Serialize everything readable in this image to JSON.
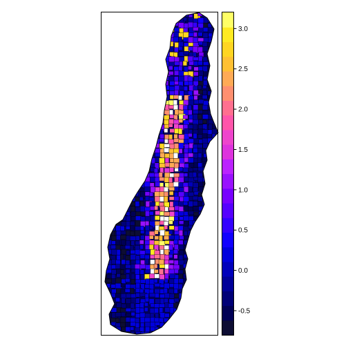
{
  "map": {
    "type": "choropleth",
    "legend_placement": "right",
    "colors": {
      "frame": "#000000",
      "region_border": "#000000",
      "missing": "#ffffff"
    }
  },
  "legend": {
    "min": -0.8,
    "max": 3.2,
    "bins": [
      "#0d0d33",
      "#000055",
      "#000077",
      "#000099",
      "#0000bb",
      "#0000dd",
      "#1100ff",
      "#3300ff",
      "#5500ff",
      "#7700ff",
      "#9911ff",
      "#bb22ff",
      "#dd33dd",
      "#ee44cc",
      "#ff55aa",
      "#ff6f8f",
      "#ff8f6f",
      "#ffaa55",
      "#ffc033",
      "#ffd522",
      "#ffea22",
      "#ffff66"
    ],
    "ticks": [
      {
        "value": -0.5,
        "label": "-0.5"
      },
      {
        "value": 0.0,
        "label": "0.0"
      },
      {
        "value": 0.5,
        "label": "0.5"
      },
      {
        "value": 1.0,
        "label": "1.0"
      },
      {
        "value": 1.5,
        "label": "1.5"
      },
      {
        "value": 2.0,
        "label": "2.0"
      },
      {
        "value": 2.5,
        "label": "2.5"
      },
      {
        "value": 3.0,
        "label": "3.0"
      }
    ]
  }
}
